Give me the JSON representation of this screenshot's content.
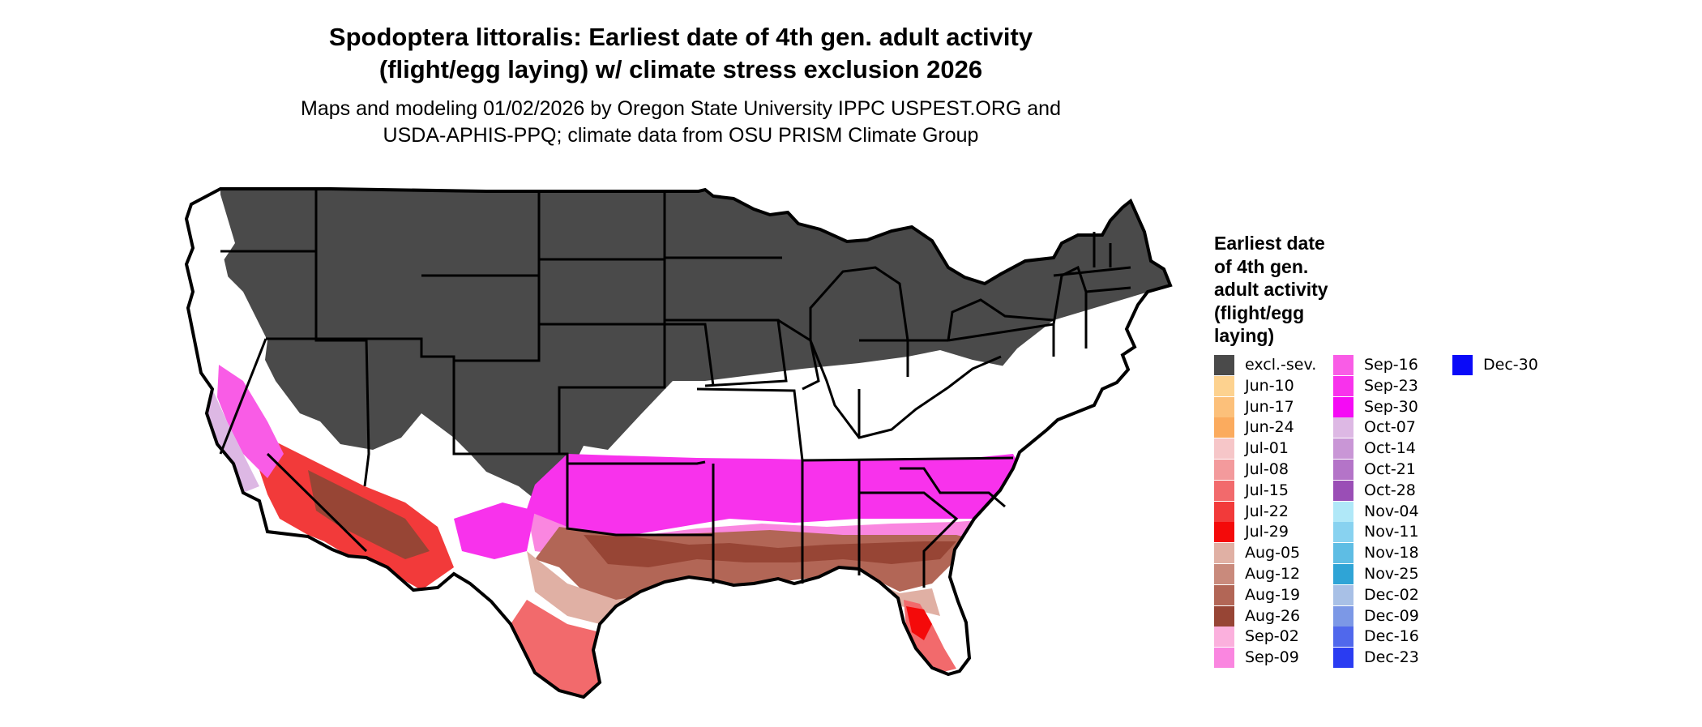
{
  "title_line1": "Spodoptera littoralis: Earliest date of 4th gen. adult activity",
  "title_line2": "(flight/egg laying) w/ climate stress exclusion 2026",
  "subtitle_line1": "Maps and modeling 01/02/2026 by Oregon State University IPPC USPEST.ORG and",
  "subtitle_line2": "USDA-APHIS-PPQ; climate data from OSU PRISM Climate Group",
  "legend": {
    "title_lines": [
      "Earliest date",
      "of 4th gen.",
      "adult activity",
      "(flight/egg",
      "laying)"
    ],
    "items": [
      {
        "label": "excl.-sev.",
        "color": "#4a4a4a"
      },
      {
        "label": "Jun-10",
        "color": "#fdd28f"
      },
      {
        "label": "Jun-17",
        "color": "#fcc07a"
      },
      {
        "label": "Jun-24",
        "color": "#fbab5e"
      },
      {
        "label": "Jul-01",
        "color": "#f6c6c8"
      },
      {
        "label": "Jul-08",
        "color": "#f39a9c"
      },
      {
        "label": "Jul-15",
        "color": "#f26a6c"
      },
      {
        "label": "Jul-22",
        "color": "#f23a3a"
      },
      {
        "label": "Jul-29",
        "color": "#f40a0a"
      },
      {
        "label": "Aug-05",
        "color": "#e0b0a4"
      },
      {
        "label": "Aug-12",
        "color": "#c98a7c"
      },
      {
        "label": "Aug-19",
        "color": "#b26656"
      },
      {
        "label": "Aug-26",
        "color": "#974535"
      },
      {
        "label": "Sep-02",
        "color": "#fbb0dd"
      },
      {
        "label": "Sep-09",
        "color": "#fa86e0"
      },
      {
        "label": "Sep-16",
        "color": "#f95ce6"
      },
      {
        "label": "Sep-23",
        "color": "#f832ec"
      },
      {
        "label": "Sep-30",
        "color": "#f50af5"
      },
      {
        "label": "Oct-07",
        "color": "#ddb8e4"
      },
      {
        "label": "Oct-14",
        "color": "#c996d6"
      },
      {
        "label": "Oct-21",
        "color": "#b474c8"
      },
      {
        "label": "Oct-28",
        "color": "#9a4eb6"
      },
      {
        "label": "Nov-04",
        "color": "#b0e8f8"
      },
      {
        "label": "Nov-11",
        "color": "#88d2f0"
      },
      {
        "label": "Nov-18",
        "color": "#5ebde4"
      },
      {
        "label": "Nov-25",
        "color": "#2fa4d6"
      },
      {
        "label": "Dec-02",
        "color": "#a8c0e6"
      },
      {
        "label": "Dec-09",
        "color": "#7c98e6"
      },
      {
        "label": "Dec-16",
        "color": "#5068ec"
      },
      {
        "label": "Dec-23",
        "color": "#2a3cf2"
      },
      {
        "label": "Dec-30",
        "color": "#0a0af8"
      }
    ]
  },
  "map": {
    "excluded_color": "#4a4a4a",
    "no_activity_color": "#ffffff",
    "border_color": "#000000"
  }
}
